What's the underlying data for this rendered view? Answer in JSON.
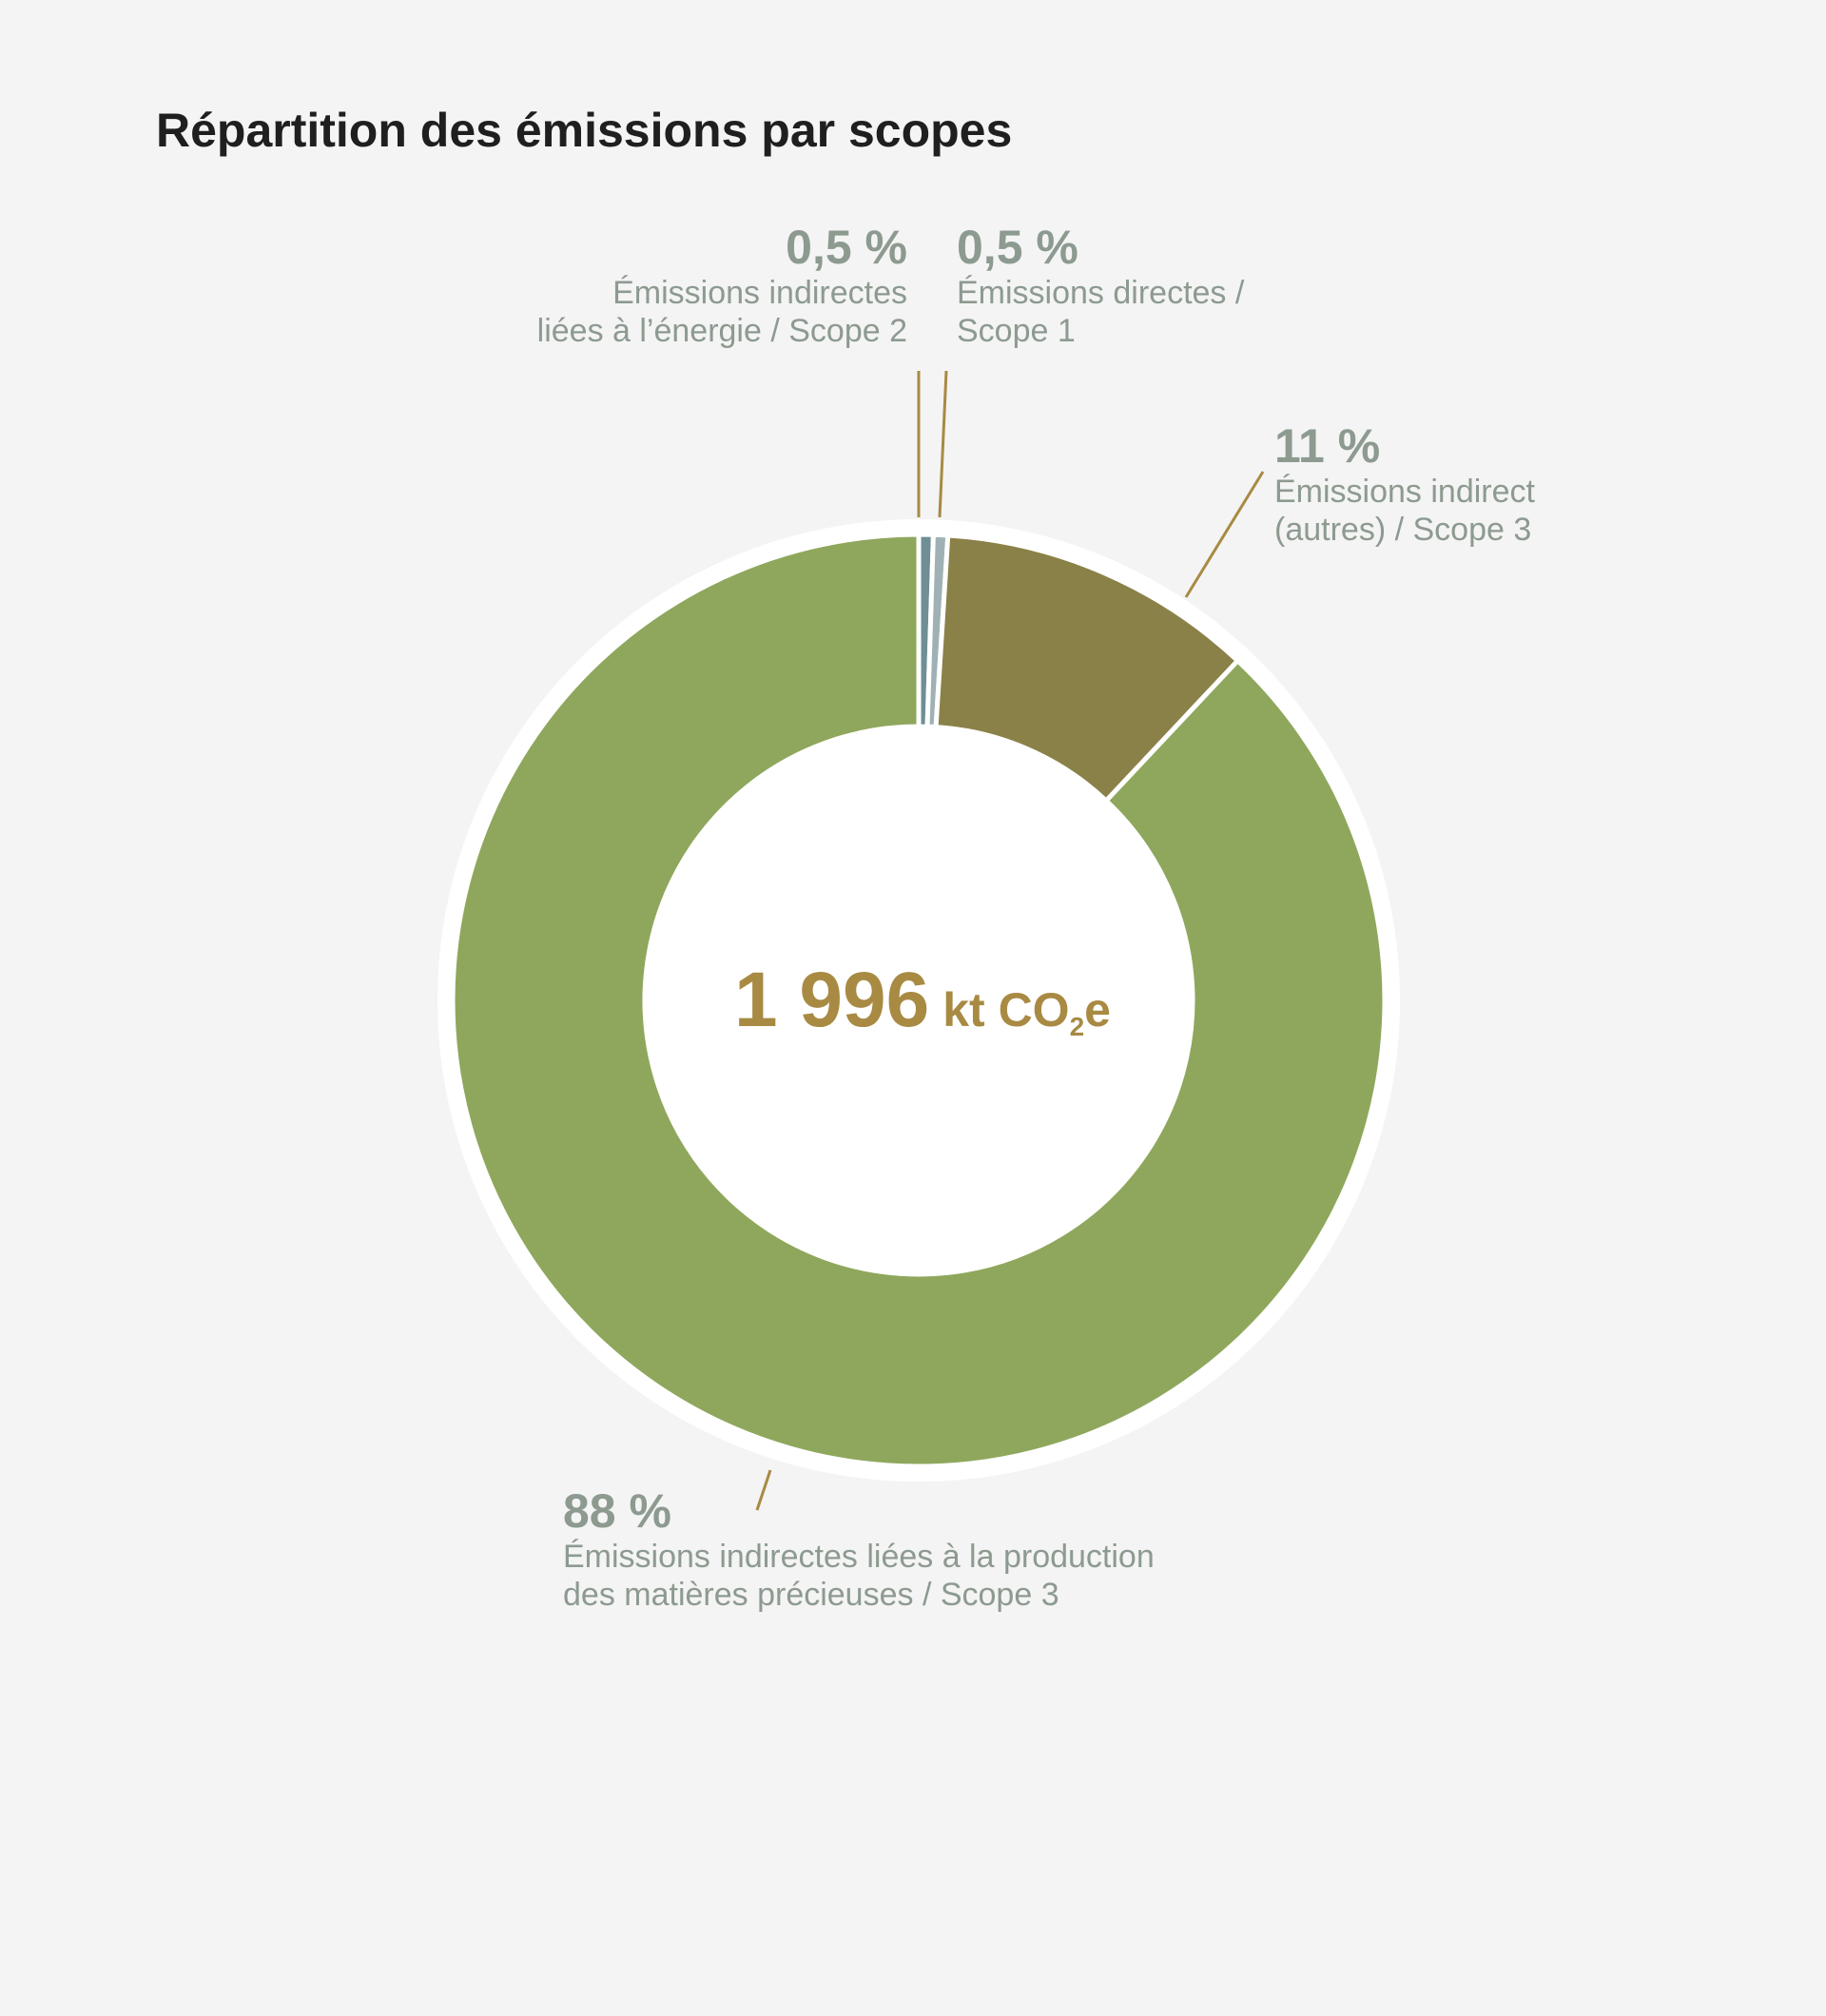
{
  "chart_data": {
    "type": "pie",
    "title": "Répartition des émissions par scopes",
    "center_label": {
      "value": "1 996",
      "unit_prefix": "kt CO",
      "unit_sub": "2",
      "unit_suffix": "e"
    },
    "slices": [
      {
        "label_lines": [
          "Émissions indirectes",
          "liées à l’énergie / Scope 2"
        ],
        "percent_label": "0,5 %",
        "value": 0.5,
        "color": "#6f8e96"
      },
      {
        "label_lines": [
          "Émissions directes /",
          "Scope 1"
        ],
        "percent_label": "0,5 %",
        "value": 0.5,
        "color": "#9fb1b5"
      },
      {
        "label_lines": [
          "Émissions indirect",
          "(autres) / Scope 3"
        ],
        "percent_label": "11 %",
        "value": 11,
        "color": "#8a8148"
      },
      {
        "label_lines": [
          "Émissions indirectes liées à la production",
          "des matières précieuses / Scope 3"
        ],
        "percent_label": "88 %",
        "value": 88,
        "color": "#8fa75c"
      }
    ],
    "leader_line_color": "#a88a43"
  }
}
